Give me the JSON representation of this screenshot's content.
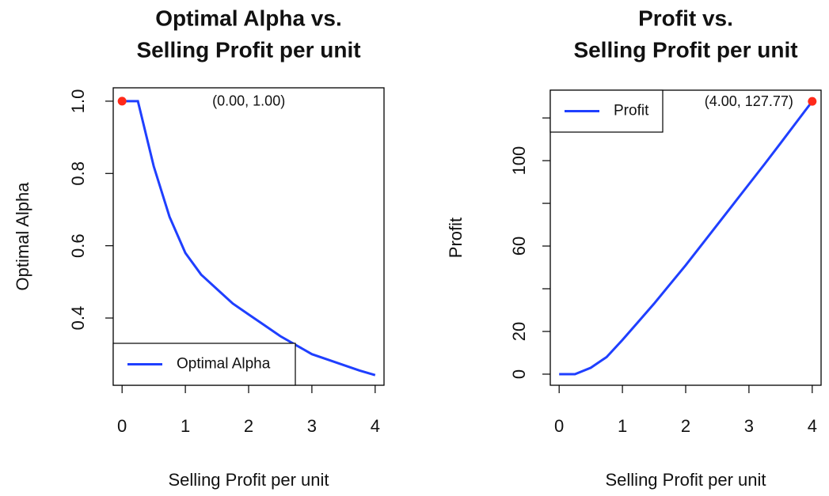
{
  "chart_data": [
    {
      "type": "line",
      "title": [
        "Optimal Alpha vs.",
        "Selling Profit per unit"
      ],
      "xlabel": "Selling Profit per unit",
      "ylabel": "Optimal Alpha",
      "x": [
        0,
        0.25,
        0.5,
        0.75,
        1,
        1.25,
        1.5,
        1.75,
        2,
        2.25,
        2.5,
        2.75,
        3,
        3.25,
        3.5,
        3.75,
        4
      ],
      "series": [
        {
          "name": "Optimal Alpha",
          "color": "#1f3fff",
          "values": [
            1,
            1,
            0.82,
            0.68,
            0.58,
            0.52,
            0.48,
            0.44,
            0.41,
            0.38,
            0.35,
            0.325,
            0.3,
            0.285,
            0.27,
            0.255,
            0.242
          ]
        }
      ],
      "xlim": [
        -0.14,
        4.14
      ],
      "xticks": [
        0,
        1,
        2,
        3,
        4
      ],
      "ylim": [
        0.214,
        1.037
      ],
      "yticks": [
        0.4,
        0.6,
        0.8,
        {
          "value": 1,
          "label": "1.0"
        }
      ],
      "highlight": {
        "x": 0,
        "y": 1,
        "label": "(0.00, 1.00)",
        "color": "#ff2a1a"
      },
      "legend": "bottom-left"
    },
    {
      "type": "line",
      "title": [
        "Profit vs.",
        "Selling Profit per unit"
      ],
      "xlabel": "Selling Profit per unit",
      "ylabel": "Profit",
      "x": [
        0,
        0.25,
        0.5,
        0.75,
        1,
        1.25,
        1.5,
        1.75,
        2,
        2.25,
        2.5,
        2.75,
        3,
        3.25,
        3.5,
        3.75,
        4
      ],
      "series": [
        {
          "name": "Profit",
          "color": "#1f3fff",
          "values": [
            0,
            0,
            3,
            8,
            16,
            24.5,
            33,
            42,
            51,
            60.5,
            70,
            79.5,
            89,
            98.5,
            108.2,
            118,
            127.77
          ]
        }
      ],
      "xlim": [
        -0.14,
        4.14
      ],
      "xticks": [
        0,
        1,
        2,
        3,
        4
      ],
      "ylim": [
        -5.2,
        133
      ],
      "yticks": [
        0,
        20,
        60,
        100
      ],
      "yminor_ticks": [
        40,
        80,
        120
      ],
      "highlight": {
        "x": 4,
        "y": 127.77,
        "label": "(4.00, 127.77)",
        "color": "#ff2a1a"
      },
      "legend": "top-left"
    }
  ]
}
